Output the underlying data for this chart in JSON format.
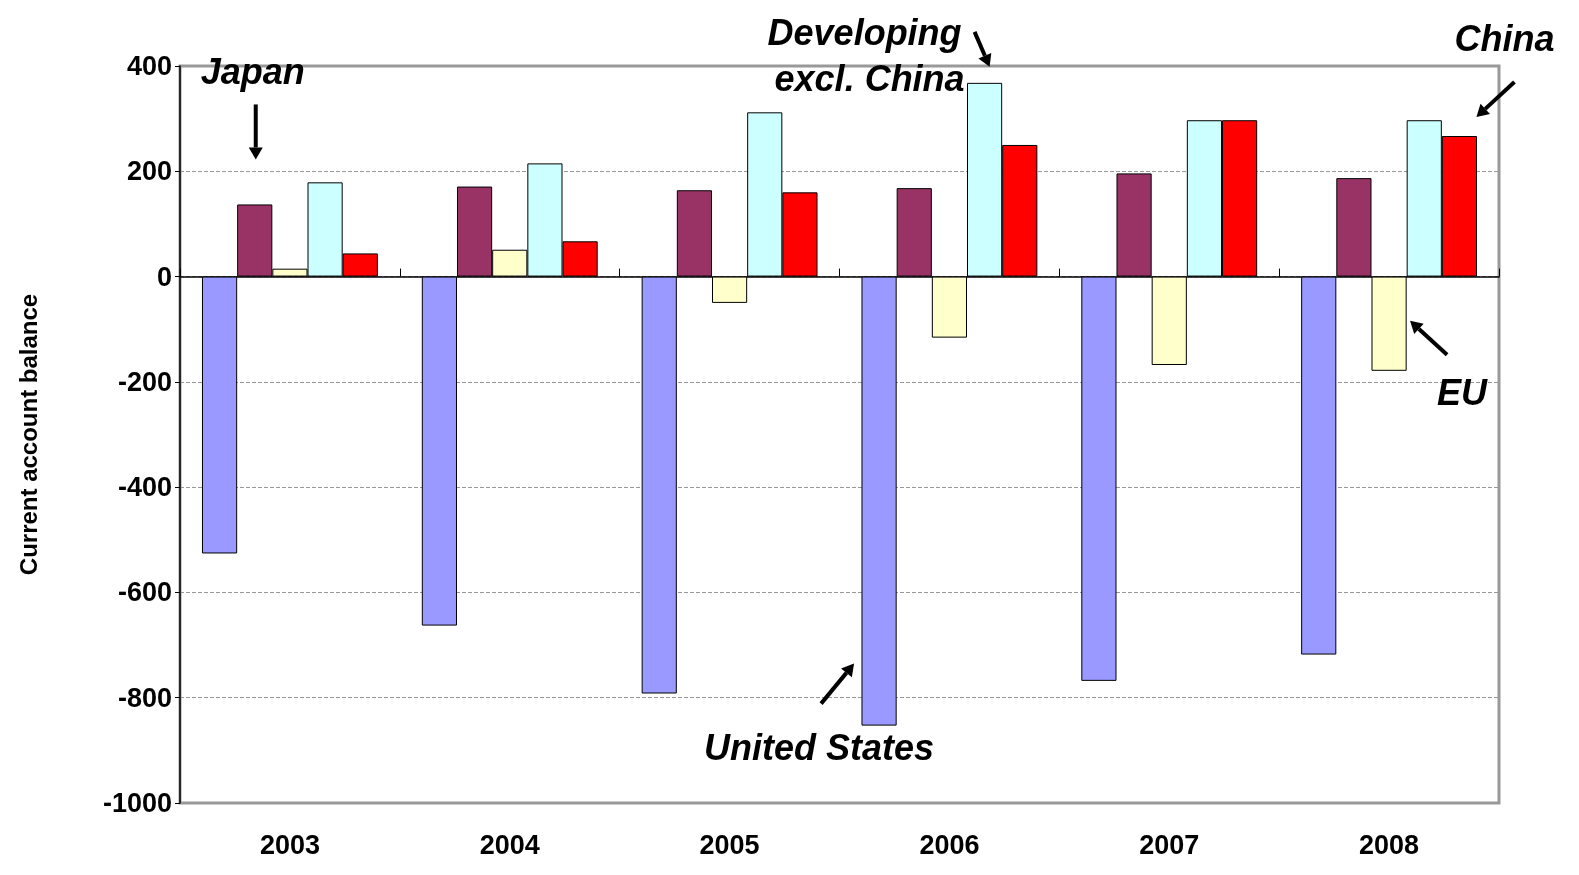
{
  "chart_data": {
    "type": "bar",
    "ylabel": "Current account balance",
    "categories": [
      "2003",
      "2004",
      "2005",
      "2006",
      "2007",
      "2008"
    ],
    "series": [
      {
        "color": "#9999ff",
        "values": [
          -526,
          -663,
          -792,
          -853,
          -768,
          -718
        ]
      },
      {
        "color": "#993366",
        "values": [
          137,
          171,
          164,
          168,
          196,
          187
        ]
      },
      {
        "color": "#ffffcc",
        "values": [
          15,
          51,
          -50,
          -116,
          -168,
          -179
        ]
      },
      {
        "color": "#ccffff",
        "values": [
          179,
          215,
          312,
          368,
          297,
          297
        ]
      },
      {
        "color": "#ff0000",
        "values": [
          44,
          67,
          160,
          250,
          297,
          267
        ]
      }
    ],
    "annotations": [
      "United States",
      "Japan",
      "EU",
      "Developing excl. China",
      "China"
    ],
    "ylim": [
      -1000,
      400
    ],
    "yticks": [
      {
        "value": -1000,
        "label": "-1000"
      },
      -800,
      -600,
      -400,
      -200,
      0,
      200,
      400
    ],
    "grid": "y"
  }
}
